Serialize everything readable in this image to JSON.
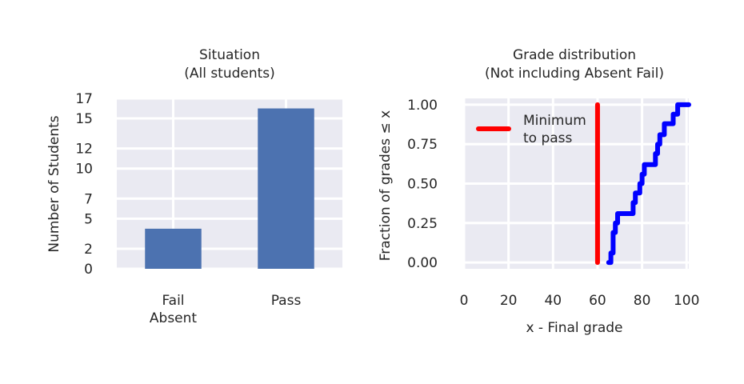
{
  "chart_data": [
    {
      "type": "bar",
      "title": [
        "Situation",
        "(All students)"
      ],
      "ylabel": "Number of Students",
      "categories": [
        [
          "Fail",
          "Absent"
        ],
        [
          "Pass"
        ]
      ],
      "values": [
        4,
        16
      ],
      "yticks": [
        0,
        2,
        5,
        7,
        10,
        12,
        15,
        17
      ],
      "ylim": [
        0,
        17
      ],
      "colors": {
        "bar": "#4c72b0",
        "plot_bg": "#eaeaf2",
        "grid": "#ffffff"
      },
      "grid": true
    },
    {
      "type": "line",
      "title": [
        "Grade distribution",
        "(Not including Absent Fail)"
      ],
      "xlabel": "x - Final grade",
      "ylabel": "Fraction of grades ≤ x",
      "xticks": [
        0,
        20,
        40,
        60,
        80,
        100
      ],
      "yticks": [
        "0.00",
        "0.25",
        "0.50",
        "0.75",
        "1.00"
      ],
      "xlim": [
        0,
        101
      ],
      "ylim": [
        -0.04,
        1.04
      ],
      "series": [
        {
          "name": "",
          "color": "#0000ff",
          "x": [
            65,
            66,
            67,
            68,
            69,
            70,
            76,
            77,
            79,
            80,
            81,
            83,
            86,
            87,
            88,
            90,
            91,
            94,
            95,
            96,
            101
          ],
          "y": [
            0.0,
            0.06,
            0.19,
            0.25,
            0.31,
            0.31,
            0.38,
            0.44,
            0.5,
            0.56,
            0.62,
            0.62,
            0.69,
            0.75,
            0.81,
            0.88,
            0.88,
            0.94,
            0.94,
            1.0,
            1.0
          ]
        }
      ],
      "threshold": {
        "name": [
          "Minimum",
          "to pass"
        ],
        "x": 60,
        "color": "#ff0000"
      },
      "legend_placement": "top-left",
      "colors": {
        "plot_bg": "#eaeaf2",
        "grid": "#ffffff"
      },
      "grid": true
    }
  ]
}
